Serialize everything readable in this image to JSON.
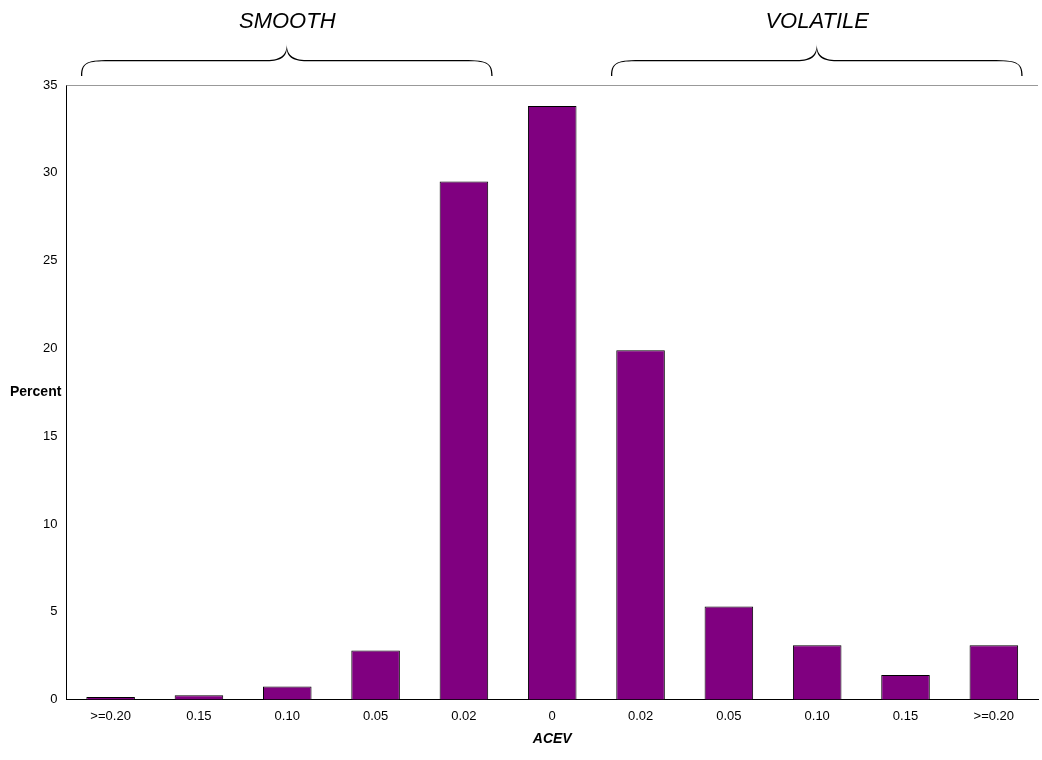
{
  "chart_data": {
    "type": "bar",
    "xlabel": "ACEV",
    "ylabel": "Percent",
    "categories": [
      ">=0.20",
      "0.15",
      "0.10",
      "0.05",
      "0.02",
      "0",
      "0.02",
      "0.05",
      "0.10",
      "0.15",
      ">=0.20"
    ],
    "values": [
      0.15,
      0.25,
      0.75,
      2.8,
      29.5,
      33.8,
      19.9,
      5.3,
      3.1,
      1.4,
      3.1
    ],
    "color": "#800080",
    "ylim": [
      0,
      35
    ],
    "yticks": [
      0,
      5,
      10,
      15,
      20,
      25,
      30,
      35
    ],
    "annotations": [
      "SMOOTH",
      "VOLATILE"
    ]
  }
}
